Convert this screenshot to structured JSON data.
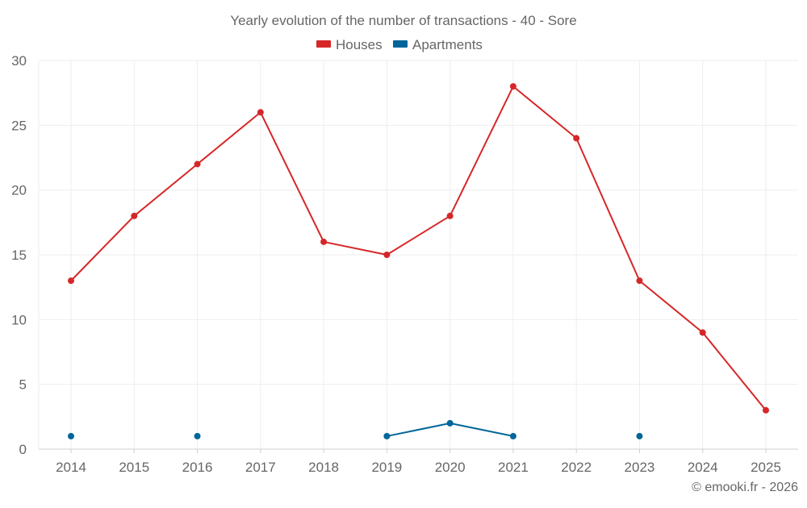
{
  "chart_data": {
    "type": "line",
    "title": "Yearly evolution of the number of transactions - 40 - Sore",
    "categories": [
      "2014",
      "2015",
      "2016",
      "2017",
      "2018",
      "2019",
      "2020",
      "2021",
      "2022",
      "2023",
      "2024",
      "2025"
    ],
    "y_ticks": [
      "0",
      "5",
      "10",
      "15",
      "20",
      "25",
      "30"
    ],
    "ylim": [
      0,
      30
    ],
    "grid": true,
    "legend_position": "top-center",
    "series": [
      {
        "name": "Houses",
        "color": "#d62728",
        "values": [
          13,
          18,
          22,
          26,
          16,
          15,
          18,
          28,
          24,
          13,
          9,
          3
        ]
      },
      {
        "name": "Apartments",
        "color": "#006699",
        "values": [
          1,
          null,
          1,
          null,
          null,
          1,
          2,
          1,
          null,
          1,
          null,
          null
        ]
      }
    ],
    "footer": "© emooki.fr - 2026"
  }
}
